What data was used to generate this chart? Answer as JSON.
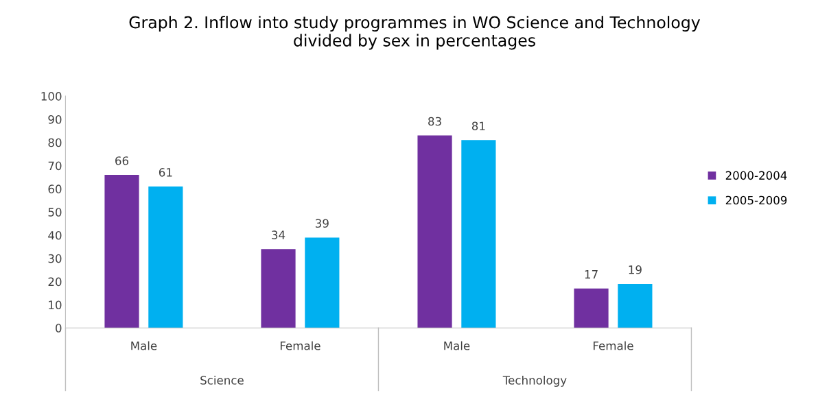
{
  "chart_data": {
    "type": "bar",
    "title": "Graph 2. Inflow into study programmes in WO Science and Technology\ndivided by sex in percentages",
    "categories": [
      "Male",
      "Female",
      "Male",
      "Female"
    ],
    "series": [
      {
        "name": "2000-2004",
        "color": "#7030a0",
        "values": [
          66,
          34,
          83,
          17
        ]
      },
      {
        "name": "2005-2009",
        "color": "#00b0f0",
        "values": [
          61,
          39,
          81,
          19
        ]
      }
    ],
    "annotations": [
      "Science",
      "Technology"
    ],
    "ylim": [
      0,
      100
    ],
    "yticks": [
      0,
      10,
      20,
      30,
      40,
      50,
      60,
      70,
      80,
      90,
      100
    ],
    "data_labels": true,
    "legend": "right",
    "grid": false
  }
}
